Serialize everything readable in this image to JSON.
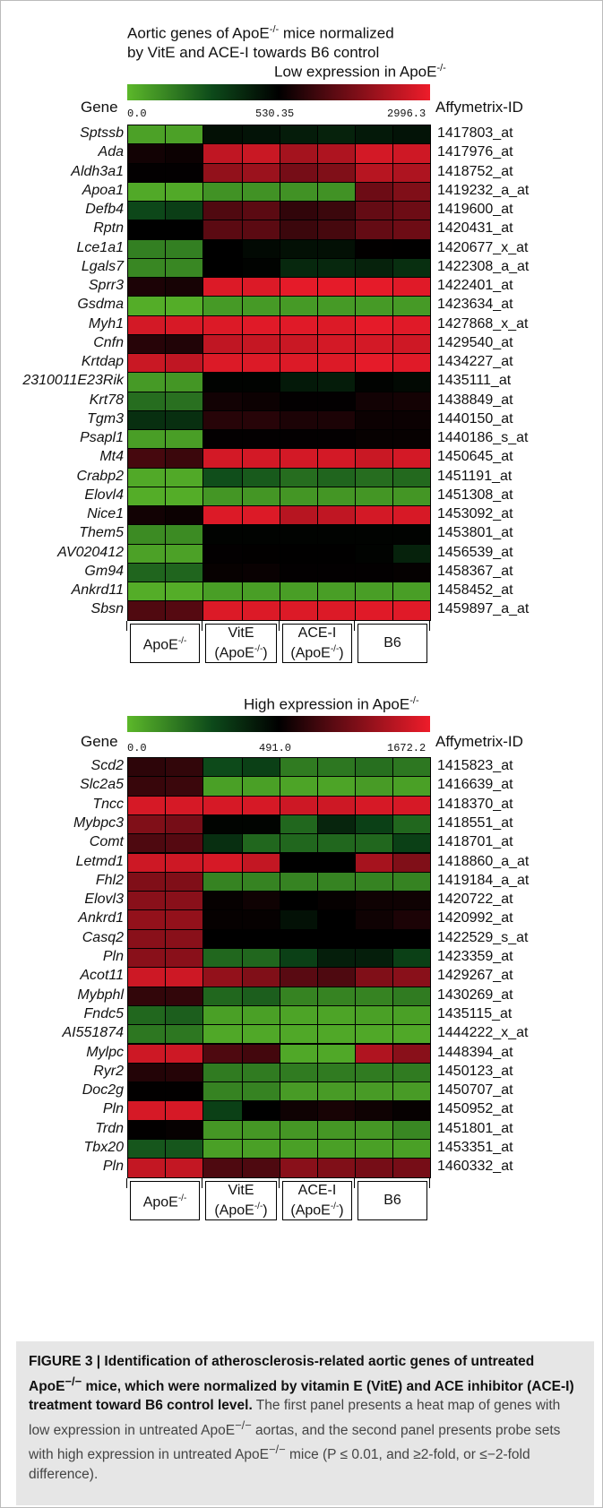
{
  "chart_data": [
    {
      "type": "heatmap",
      "title_lines": [
        "Aortic genes of ApoE",
        "mice normalized",
        "by VitE and ACE-I towards B6 control"
      ],
      "title_sup": "-/-",
      "subtitle": "Low expression in ApoE",
      "subtitle_sup": "-/-",
      "xlabel_left": "Gene",
      "xlabel_right": "Affymetrix-ID",
      "color_ticks": [
        "0.0",
        "530.35",
        "2996.3"
      ],
      "color_range": [
        0.0,
        530.35,
        2996.3
      ],
      "groups": [
        {
          "label": "ApoE",
          "sup": "-/-"
        },
        {
          "label": "VitE",
          "label2": "(ApoE",
          "sup2": "-/-",
          "close": ")"
        },
        {
          "label": "ACE-I",
          "label2": "(ApoE",
          "sup2": "-/-",
          "close": ")"
        },
        {
          "label": "B6"
        }
      ],
      "rows": [
        {
          "gene": "Sptssb",
          "probe": "1417803_at",
          "values": [
            60,
            60,
            480,
            470,
            440,
            420,
            450,
            470
          ]
        },
        {
          "gene": "Ada",
          "probe": "1417976_at",
          "values": [
            700,
            650,
            2500,
            2600,
            2200,
            2300,
            2700,
            2650
          ]
        },
        {
          "gene": "Aldh3a1",
          "probe": "1418752_at",
          "values": [
            560,
            560,
            2000,
            2100,
            1700,
            1800,
            2400,
            2300
          ]
        },
        {
          "gene": "Apoa1",
          "probe": "1419232_a_at",
          "values": [
            40,
            40,
            100,
            100,
            100,
            100,
            1600,
            1800
          ]
        },
        {
          "gene": "Defb4",
          "probe": "1419600_at",
          "values": [
            300,
            330,
            1300,
            1400,
            1000,
            1100,
            1500,
            1600
          ]
        },
        {
          "gene": "Rptn",
          "probe": "1420431_at",
          "values": [
            530,
            530,
            1400,
            1400,
            1100,
            1200,
            1500,
            1600
          ]
        },
        {
          "gene": "Lce1a1",
          "probe": "1420677_x_at",
          "values": [
            150,
            150,
            530,
            500,
            480,
            480,
            550,
            540
          ]
        },
        {
          "gene": "Lgals7",
          "probe": "1422308_a_at",
          "values": [
            130,
            130,
            530,
            520,
            400,
            400,
            420,
            380
          ]
        },
        {
          "gene": "Sprr3",
          "probe": "1422401_at",
          "values": [
            800,
            750,
            2800,
            2800,
            2900,
            2900,
            2900,
            2850
          ]
        },
        {
          "gene": "Gsdma",
          "probe": "1423634_at",
          "values": [
            30,
            30,
            80,
            80,
            80,
            80,
            80,
            80
          ]
        },
        {
          "gene": "Myh1",
          "probe": "1427868_x_at",
          "values": [
            2700,
            2750,
            2800,
            2850,
            2850,
            2800,
            2900,
            2850
          ]
        },
        {
          "gene": "Cnfn",
          "probe": "1429540_at",
          "values": [
            900,
            850,
            2500,
            2550,
            2600,
            2700,
            2700,
            2650
          ]
        },
        {
          "gene": "Krtdap",
          "probe": "1434227_at",
          "values": [
            2600,
            2500,
            2800,
            2800,
            2800,
            2800,
            2900,
            2850
          ]
        },
        {
          "gene": "2310011E23Rik",
          "probe": "1435111_at",
          "values": [
            80,
            90,
            520,
            520,
            450,
            440,
            520,
            500
          ]
        },
        {
          "gene": "Krt78",
          "probe": "1438849_at",
          "values": [
            200,
            190,
            700,
            650,
            560,
            560,
            700,
            720
          ]
        },
        {
          "gene": "Tgm3",
          "probe": "1440150_at",
          "values": [
            380,
            380,
            900,
            900,
            800,
            800,
            650,
            640
          ]
        },
        {
          "gene": "Psapl1",
          "probe": "1440186_s_at",
          "values": [
            70,
            70,
            560,
            560,
            560,
            560,
            600,
            600
          ]
        },
        {
          "gene": "Mt4",
          "probe": "1450645_at",
          "values": [
            1200,
            1100,
            2700,
            2700,
            2700,
            2700,
            2600,
            2700
          ]
        },
        {
          "gene": "Crabp2",
          "probe": "1451191_at",
          "values": [
            40,
            40,
            280,
            250,
            200,
            220,
            200,
            210
          ]
        },
        {
          "gene": "Elovl4",
          "probe": "1451308_at",
          "values": [
            30,
            30,
            90,
            90,
            90,
            90,
            90,
            90
          ]
        },
        {
          "gene": "Nice1",
          "probe": "1453092_at",
          "values": [
            700,
            650,
            2800,
            2800,
            2400,
            2500,
            2700,
            2750
          ]
        },
        {
          "gene": "Them5",
          "probe": "1453801_at",
          "values": [
            120,
            120,
            520,
            520,
            520,
            520,
            520,
            520
          ]
        },
        {
          "gene": "AV020412",
          "probe": "1456539_at",
          "values": [
            60,
            60,
            560,
            550,
            540,
            540,
            520,
            420
          ]
        },
        {
          "gene": "Gm94",
          "probe": "1458367_at",
          "values": [
            220,
            220,
            600,
            620,
            560,
            560,
            560,
            580
          ]
        },
        {
          "gene": "Ankrd11",
          "probe": "1458452_at",
          "values": [
            30,
            30,
            70,
            70,
            70,
            70,
            70,
            70
          ]
        },
        {
          "gene": "Sbsn",
          "probe": "1459897_a_at",
          "values": [
            1300,
            1350,
            2800,
            2800,
            2800,
            2800,
            2850,
            2850
          ]
        }
      ]
    },
    {
      "type": "heatmap",
      "subtitle": "High expression in ApoE",
      "subtitle_sup": "-/-",
      "xlabel_left": "Gene",
      "xlabel_right": "Affymetrix-ID",
      "color_ticks": [
        "0.0",
        "491.0",
        "1672.2"
      ],
      "color_range": [
        0.0,
        491.0,
        1672.2
      ],
      "groups": [
        {
          "label": "ApoE",
          "sup": "-/-"
        },
        {
          "label": "VitE",
          "label2": "(ApoE",
          "sup2": "-/-",
          "close": ")"
        },
        {
          "label": "ACE-I",
          "label2": "(ApoE",
          "sup2": "-/-",
          "close": ")"
        },
        {
          "label": "B6"
        }
      ],
      "rows": [
        {
          "gene": "Scd2",
          "probe": "1415823_at",
          "values": [
            700,
            720,
            270,
            300,
            150,
            160,
            180,
            160
          ]
        },
        {
          "gene": "Slc2a5",
          "probe": "1416639_at",
          "values": [
            750,
            760,
            60,
            60,
            50,
            50,
            70,
            60
          ]
        },
        {
          "gene": "Tncc",
          "probe": "1418370_at",
          "values": [
            1550,
            1550,
            1550,
            1550,
            1500,
            1500,
            1550,
            1550
          ]
        },
        {
          "gene": "Mybpc3",
          "probe": "1418551_at",
          "values": [
            1100,
            1050,
            480,
            480,
            200,
            380,
            300,
            200
          ]
        },
        {
          "gene": "Comt",
          "probe": "1418701_at",
          "values": [
            850,
            880,
            350,
            200,
            200,
            200,
            200,
            300
          ]
        },
        {
          "gene": "Letmd1",
          "probe": "1418860_a_at",
          "values": [
            1500,
            1500,
            1550,
            1450,
            490,
            490,
            1300,
            1100
          ]
        },
        {
          "gene": "Fhl2",
          "probe": "1419184_a_at",
          "values": [
            1100,
            1100,
            130,
            130,
            130,
            130,
            130,
            130
          ]
        },
        {
          "gene": "Elovl3",
          "probe": "1420722_at",
          "values": [
            1150,
            1150,
            520,
            560,
            490,
            520,
            560,
            560
          ]
        },
        {
          "gene": "Ankrd1",
          "probe": "1420992_at",
          "values": [
            1200,
            1200,
            520,
            520,
            440,
            490,
            560,
            620
          ]
        },
        {
          "gene": "Casq2",
          "probe": "1422529_s_at",
          "values": [
            1150,
            1150,
            490,
            490,
            490,
            490,
            490,
            490
          ]
        },
        {
          "gene": "Pln",
          "probe": "1423359_at",
          "values": [
            1150,
            1150,
            200,
            200,
            300,
            400,
            400,
            300
          ]
        },
        {
          "gene": "Acot11",
          "probe": "1429267_at",
          "values": [
            1500,
            1500,
            1200,
            1100,
            900,
            850,
            1100,
            1150
          ]
        },
        {
          "gene": "Mybphl",
          "probe": "1430269_at",
          "values": [
            720,
            720,
            200,
            220,
            130,
            130,
            130,
            150
          ]
        },
        {
          "gene": "Fndc5",
          "probe": "1435115_at",
          "values": [
            200,
            220,
            60,
            60,
            50,
            50,
            60,
            60
          ]
        },
        {
          "gene": "AI551874",
          "probe": "1444222_x_at",
          "values": [
            160,
            160,
            40,
            40,
            40,
            40,
            40,
            40
          ]
        },
        {
          "gene": "Mylpc",
          "probe": "1448394_at",
          "values": [
            1500,
            1500,
            850,
            800,
            40,
            40,
            1350,
            1150
          ]
        },
        {
          "gene": "Ryr2",
          "probe": "1450123_at",
          "values": [
            650,
            660,
            150,
            150,
            150,
            150,
            150,
            150
          ]
        },
        {
          "gene": "Doc2g",
          "probe": "1450707_at",
          "values": [
            500,
            500,
            130,
            130,
            70,
            70,
            70,
            70
          ]
        },
        {
          "gene": "Pln",
          "probe": "1450952_at",
          "values": [
            1550,
            1550,
            300,
            490,
            560,
            600,
            560,
            520
          ]
        },
        {
          "gene": "Trdn",
          "probe": "1451801_at",
          "values": [
            500,
            520,
            80,
            80,
            80,
            80,
            80,
            120
          ]
        },
        {
          "gene": "Tbx20",
          "probe": "1453351_at",
          "values": [
            240,
            240,
            60,
            60,
            60,
            60,
            60,
            60
          ]
        },
        {
          "gene": "Pln",
          "probe": "1460332_at",
          "values": [
            1450,
            1450,
            850,
            850,
            1150,
            1100,
            1050,
            1050
          ]
        }
      ]
    }
  ],
  "caption": {
    "bold_part1": "FIGURE 3 | Identification of atherosclerosis-related aortic genes of untreated ApoE",
    "bold_sup1": "−/−",
    "bold_part2": " mice, which were normalized by vitamin E (VitE) and ACE inhibitor (ACE-I) treatment toward B6 control level.",
    "text1": " The first panel presents a heat map of genes with low expression in untreated ApoE",
    "sup2": "−/−",
    "text2": " aortas, and the second panel presents probe sets with high expression in untreated ApoE",
    "sup3": "−/−",
    "text3": " mice (P ≤ 0.01, and ≥2-fold, or ≤−2-fold difference)."
  },
  "colors": {
    "low": "#5cb82a",
    "dark_green": "#0d4a1a",
    "mid": "#000000",
    "dark_red": "#5a0a12",
    "high": "#ee1c2a"
  }
}
